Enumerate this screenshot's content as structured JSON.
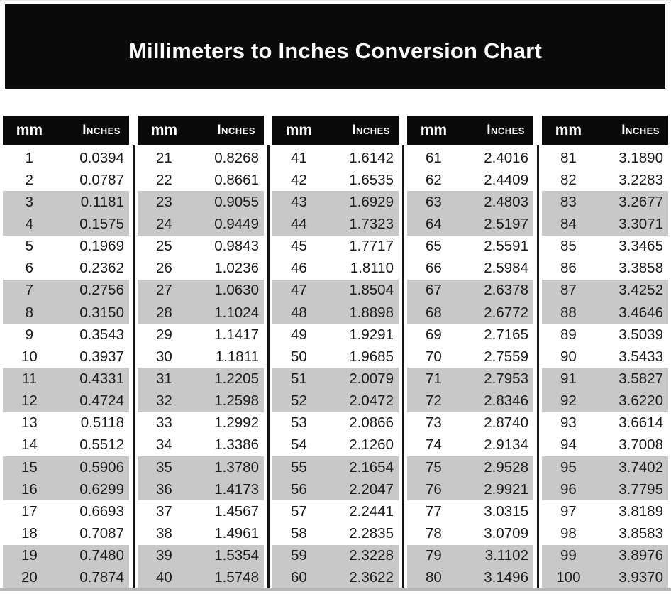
{
  "title": "Millimeters to Inches Conversion Chart",
  "colors": {
    "banner": "#0a0a0a",
    "header": "#0a0a0a",
    "stripe": "#c8c8c8",
    "divider": "#141414",
    "rule": "#b6b6b6"
  },
  "table": {
    "header": {
      "mm_label": "mm",
      "inches_label": "Inches"
    },
    "groups": [
      {
        "rows": [
          {
            "mm": "1",
            "in": "0.0394"
          },
          {
            "mm": "2",
            "in": "0.0787"
          },
          {
            "mm": "3",
            "in": "0.1181"
          },
          {
            "mm": "4",
            "in": "0.1575"
          },
          {
            "mm": "5",
            "in": "0.1969"
          },
          {
            "mm": "6",
            "in": "0.2362"
          },
          {
            "mm": "7",
            "in": "0.2756"
          },
          {
            "mm": "8",
            "in": "0.3150"
          },
          {
            "mm": "9",
            "in": "0.3543"
          },
          {
            "mm": "10",
            "in": "0.3937"
          },
          {
            "mm": "11",
            "in": "0.4331"
          },
          {
            "mm": "12",
            "in": "0.4724"
          },
          {
            "mm": "13",
            "in": "0.5118"
          },
          {
            "mm": "14",
            "in": "0.5512"
          },
          {
            "mm": "15",
            "in": "0.5906"
          },
          {
            "mm": "16",
            "in": "0.6299"
          },
          {
            "mm": "17",
            "in": "0.6693"
          },
          {
            "mm": "18",
            "in": "0.7087"
          },
          {
            "mm": "19",
            "in": "0.7480"
          },
          {
            "mm": "20",
            "in": "0.7874"
          }
        ]
      },
      {
        "rows": [
          {
            "mm": "21",
            "in": "0.8268"
          },
          {
            "mm": "22",
            "in": "0.8661"
          },
          {
            "mm": "23",
            "in": "0.9055"
          },
          {
            "mm": "24",
            "in": "0.9449"
          },
          {
            "mm": "25",
            "in": "0.9843"
          },
          {
            "mm": "26",
            "in": "1.0236"
          },
          {
            "mm": "27",
            "in": "1.0630"
          },
          {
            "mm": "28",
            "in": "1.1024"
          },
          {
            "mm": "29",
            "in": "1.1417"
          },
          {
            "mm": "30",
            "in": "1.1811"
          },
          {
            "mm": "31",
            "in": "1.2205"
          },
          {
            "mm": "32",
            "in": "1.2598"
          },
          {
            "mm": "33",
            "in": "1.2992"
          },
          {
            "mm": "34",
            "in": "1.3386"
          },
          {
            "mm": "35",
            "in": "1.3780"
          },
          {
            "mm": "36",
            "in": "1.4173"
          },
          {
            "mm": "37",
            "in": "1.4567"
          },
          {
            "mm": "38",
            "in": "1.4961"
          },
          {
            "mm": "39",
            "in": "1.5354"
          },
          {
            "mm": "40",
            "in": "1.5748"
          }
        ]
      },
      {
        "rows": [
          {
            "mm": "41",
            "in": "1.6142"
          },
          {
            "mm": "42",
            "in": "1.6535"
          },
          {
            "mm": "43",
            "in": "1.6929"
          },
          {
            "mm": "44",
            "in": "1.7323"
          },
          {
            "mm": "45",
            "in": "1.7717"
          },
          {
            "mm": "46",
            "in": "1.8110"
          },
          {
            "mm": "47",
            "in": "1.8504"
          },
          {
            "mm": "48",
            "in": "1.8898"
          },
          {
            "mm": "49",
            "in": "1.9291"
          },
          {
            "mm": "50",
            "in": "1.9685"
          },
          {
            "mm": "51",
            "in": "2.0079"
          },
          {
            "mm": "52",
            "in": "2.0472"
          },
          {
            "mm": "53",
            "in": "2.0866"
          },
          {
            "mm": "54",
            "in": "2.1260"
          },
          {
            "mm": "55",
            "in": "2.1654"
          },
          {
            "mm": "56",
            "in": "2.2047"
          },
          {
            "mm": "57",
            "in": "2.2441"
          },
          {
            "mm": "58",
            "in": "2.2835"
          },
          {
            "mm": "59",
            "in": "2.3228"
          },
          {
            "mm": "60",
            "in": "2.3622"
          }
        ]
      },
      {
        "rows": [
          {
            "mm": "61",
            "in": "2.4016"
          },
          {
            "mm": "62",
            "in": "2.4409"
          },
          {
            "mm": "63",
            "in": "2.4803"
          },
          {
            "mm": "64",
            "in": "2.5197"
          },
          {
            "mm": "65",
            "in": "2.5591"
          },
          {
            "mm": "66",
            "in": "2.5984"
          },
          {
            "mm": "67",
            "in": "2.6378"
          },
          {
            "mm": "68",
            "in": "2.6772"
          },
          {
            "mm": "69",
            "in": "2.7165"
          },
          {
            "mm": "70",
            "in": "2.7559"
          },
          {
            "mm": "71",
            "in": "2.7953"
          },
          {
            "mm": "72",
            "in": "2.8346"
          },
          {
            "mm": "73",
            "in": "2.8740"
          },
          {
            "mm": "74",
            "in": "2.9134"
          },
          {
            "mm": "75",
            "in": "2.9528"
          },
          {
            "mm": "76",
            "in": "2.9921"
          },
          {
            "mm": "77",
            "in": "3.0315"
          },
          {
            "mm": "78",
            "in": "3.0709"
          },
          {
            "mm": "79",
            "in": "3.1102"
          },
          {
            "mm": "80",
            "in": "3.1496"
          }
        ]
      },
      {
        "rows": [
          {
            "mm": "81",
            "in": "3.1890"
          },
          {
            "mm": "82",
            "in": "3.2283"
          },
          {
            "mm": "83",
            "in": "3.2677"
          },
          {
            "mm": "84",
            "in": "3.3071"
          },
          {
            "mm": "85",
            "in": "3.3465"
          },
          {
            "mm": "86",
            "in": "3.3858"
          },
          {
            "mm": "87",
            "in": "3.4252"
          },
          {
            "mm": "88",
            "in": "3.4646"
          },
          {
            "mm": "89",
            "in": "3.5039"
          },
          {
            "mm": "90",
            "in": "3.5433"
          },
          {
            "mm": "91",
            "in": "3.5827"
          },
          {
            "mm": "92",
            "in": "3.6220"
          },
          {
            "mm": "93",
            "in": "3.6614"
          },
          {
            "mm": "94",
            "in": "3.7008"
          },
          {
            "mm": "95",
            "in": "3.7402"
          },
          {
            "mm": "96",
            "in": "3.7795"
          },
          {
            "mm": "97",
            "in": "3.8189"
          },
          {
            "mm": "98",
            "in": "3.8583"
          },
          {
            "mm": "99",
            "in": "3.8976"
          },
          {
            "mm": "100",
            "in": "3.9370"
          }
        ]
      }
    ]
  }
}
